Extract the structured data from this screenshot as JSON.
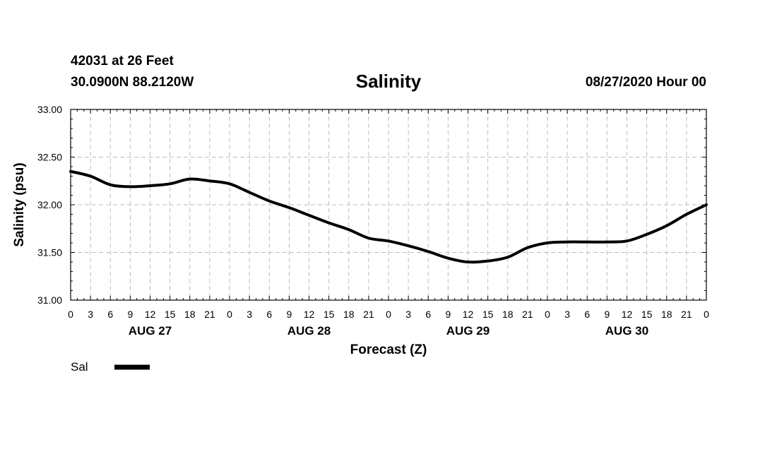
{
  "header": {
    "station": "42031 at 26 Feet",
    "coords": "30.0900N 88.2120W",
    "title": "Salinity",
    "datetime": "08/27/2020 Hour 00"
  },
  "chart_data": {
    "type": "line",
    "title": "Salinity",
    "xlabel": "Forecast (Z)",
    "ylabel": "Salinity (psu)",
    "ylim": [
      31.0,
      33.0
    ],
    "yticks": [
      "31.00",
      "31.50",
      "32.00",
      "32.50",
      "33.00"
    ],
    "x_hours_range": [
      0,
      96
    ],
    "x_tick_labels": [
      "0",
      "3",
      "6",
      "9",
      "12",
      "15",
      "18",
      "21",
      "0",
      "3",
      "6",
      "9",
      "12",
      "15",
      "18",
      "21",
      "0",
      "3",
      "6",
      "9",
      "12",
      "15",
      "18",
      "21",
      "0",
      "3",
      "6",
      "9",
      "12",
      "15",
      "18",
      "21",
      "0"
    ],
    "day_labels": [
      {
        "label": "AUG 27",
        "center_hour": 12
      },
      {
        "label": "AUG 28",
        "center_hour": 36
      },
      {
        "label": "AUG 29",
        "center_hour": 60
      },
      {
        "label": "AUG 30",
        "center_hour": 84
      }
    ],
    "grid": true,
    "legend_position": "bottom-left",
    "series": [
      {
        "name": "Sal",
        "color": "#000000",
        "x": [
          0,
          3,
          6,
          9,
          12,
          15,
          18,
          21,
          24,
          27,
          30,
          33,
          36,
          39,
          42,
          45,
          48,
          51,
          54,
          57,
          60,
          63,
          66,
          69,
          72,
          75,
          78,
          81,
          84,
          87,
          90,
          93,
          96
        ],
        "values": [
          32.35,
          32.3,
          32.21,
          32.19,
          32.2,
          32.22,
          32.27,
          32.25,
          32.22,
          32.13,
          32.04,
          31.97,
          31.89,
          31.81,
          31.74,
          31.65,
          31.62,
          31.57,
          31.51,
          31.44,
          31.4,
          31.41,
          31.45,
          31.55,
          31.6,
          31.61,
          31.61,
          31.61,
          31.62,
          31.69,
          31.78,
          31.9,
          32.0
        ]
      }
    ]
  }
}
